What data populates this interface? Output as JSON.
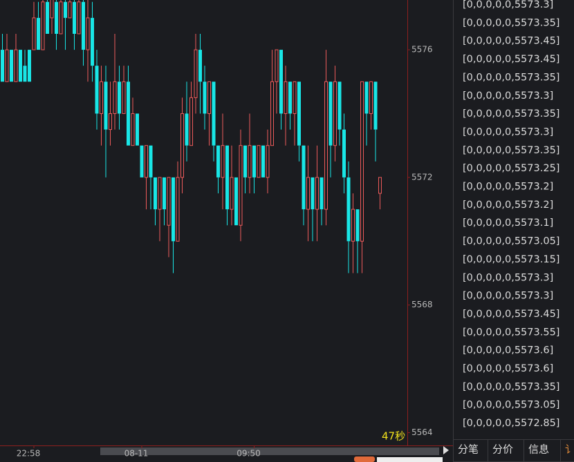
{
  "chart_data": {
    "type": "candlestick",
    "up_color": "#ef5b5b",
    "down_color": "#19e6e6",
    "categories": [
      null,
      null,
      null,
      null,
      null,
      null,
      null,
      "22:58",
      null,
      null,
      null,
      null,
      null,
      null,
      null,
      null,
      null,
      null,
      null,
      null,
      null,
      null,
      null,
      null,
      null,
      null,
      null,
      null,
      null,
      null,
      null,
      "08-11",
      null,
      null,
      null,
      null,
      null,
      null,
      null,
      null,
      null,
      null,
      null,
      null,
      null,
      null,
      null,
      null,
      null,
      null,
      null,
      null,
      null,
      null,
      null,
      null,
      "09:50",
      null,
      null,
      null,
      null,
      null,
      null,
      null,
      null,
      null,
      null,
      null,
      null,
      null,
      null,
      null,
      null,
      null,
      null,
      null,
      null,
      null,
      null,
      null,
      null,
      null,
      null,
      null,
      null
    ],
    "open": [
      5576,
      5575,
      5576,
      5575,
      5576,
      5575.5,
      5576,
      5576,
      5577,
      5576,
      5577.5,
      5577,
      5577.5,
      5576.5,
      5577.5,
      5577,
      5577.5,
      5576.5,
      5577.5,
      5576,
      5577,
      5575.5,
      5574,
      5575,
      5573.5,
      5574,
      5575,
      5574,
      5575,
      5573,
      5574,
      5573,
      5572,
      5573,
      5572,
      5571,
      5572,
      5570.5,
      5572,
      5570,
      5572,
      5574,
      5573,
      5574.5,
      5576,
      5575,
      5574,
      5575,
      5573,
      5572,
      5573,
      5571,
      5572,
      5570.5,
      5573,
      5572,
      5573,
      5572,
      5573,
      5572,
      5573,
      5575,
      5576,
      5574,
      5575,
      5574,
      5575,
      5573,
      5571,
      5572,
      5571,
      5572,
      5571,
      5575,
      5573,
      5575,
      5573.5,
      5572,
      5570,
      5571,
      5570,
      5575,
      5574,
      5575,
      5571.5
    ],
    "high": [
      5576.5,
      5576.5,
      5576,
      5576.5,
      5576,
      5576,
      5576,
      5577.5,
      5577.5,
      5577.6,
      5577.6,
      5578,
      5578,
      5578,
      5578,
      5578,
      5578,
      5578,
      5578,
      5578,
      5577.5,
      5576,
      5575.5,
      5575.5,
      5575,
      5576.5,
      5575.5,
      5575.5,
      5575.5,
      5574.5,
      5574,
      5573,
      5573,
      5573,
      5572,
      5572,
      5572,
      5572,
      5572,
      5572.5,
      5574.5,
      5575,
      5575,
      5576.5,
      5576.5,
      5575.5,
      5575,
      5575,
      5573,
      5574,
      5573,
      5573,
      5572,
      5573.5,
      5573,
      5574,
      5573,
      5573,
      5573,
      5573.5,
      5576,
      5576,
      5576,
      5575.5,
      5575,
      5575,
      5575,
      5573,
      5573,
      5572,
      5573,
      5572,
      5576,
      5575,
      5575.5,
      5575,
      5574,
      5572.5,
      5571.5,
      5571,
      5575,
      5575,
      5575,
      5575,
      5572
    ],
    "low": [
      5575,
      5575,
      5575,
      5575,
      5575,
      5575,
      5575,
      5576,
      5576,
      5576,
      5576.5,
      5576.5,
      5576,
      5576.5,
      5576,
      5577,
      5576,
      5576.5,
      5575.5,
      5575,
      5575,
      5573.5,
      5573,
      5572,
      5573,
      5573.5,
      5573.5,
      5574,
      5573,
      5573,
      5573,
      5572,
      5571,
      5571,
      5570.5,
      5570,
      5570.5,
      5569.5,
      5569,
      5570,
      5571.5,
      5572.5,
      5573,
      5574,
      5574,
      5573.5,
      5573,
      5572.5,
      5571.5,
      5571,
      5570.5,
      5570.5,
      5570.5,
      5570,
      5571.5,
      5571.5,
      5571.5,
      5572,
      5572,
      5571.5,
      5573,
      5574,
      5573.5,
      5573,
      5573.5,
      5573,
      5572.5,
      5570.5,
      5570,
      5570,
      5570,
      5570.5,
      5570.5,
      5572,
      5572.5,
      5573,
      5571.5,
      5569,
      5569,
      5569,
      5569,
      5573,
      5573.5,
      5572.5,
      5571
    ],
    "close": [
      5575,
      5576,
      5575,
      5576,
      5575,
      5575,
      5575,
      5577,
      5576,
      5577.5,
      5576.5,
      5578,
      5576.5,
      5577.5,
      5577,
      5577.5,
      5576.5,
      5577.5,
      5576,
      5577,
      5575.5,
      5574,
      5575,
      5573.5,
      5574,
      5575,
      5574,
      5575,
      5573,
      5574,
      5573,
      5572,
      5573,
      5572,
      5571,
      5572,
      5571,
      5572,
      5570,
      5572,
      5574,
      5573,
      5574.5,
      5576,
      5575,
      5574,
      5575,
      5573,
      5572,
      5573,
      5571,
      5572,
      5570.5,
      5573,
      5572,
      5573,
      5572,
      5573,
      5572,
      5573,
      5575,
      5576,
      5574,
      5575,
      5574,
      5575,
      5573,
      5571,
      5572,
      5571,
      5572,
      5571,
      5575,
      5573,
      5575,
      5573.5,
      5572,
      5570,
      5571,
      5570,
      5575,
      5574,
      5575,
      5573.5,
      5572
    ],
    "ylim": [
      5563.6,
      5577.56
    ],
    "yticks": [
      5564,
      5568,
      5572,
      5576
    ],
    "countdown": "47秒"
  },
  "tick_list": [
    "[0,0,0,0,0,5573.3]",
    "[0,0,0,0,0,5573.35]",
    "[0,0,0,0,0,5573.45]",
    "[0,0,0,0,0,5573.45]",
    "[0,0,0,0,0,5573.35]",
    "[0,0,0,0,0,5573.3]",
    "[0,0,0,0,0,5573.35]",
    "[0,0,0,0,0,5573.3]",
    "[0,0,0,0,0,5573.35]",
    "[0,0,0,0,0,5573.25]",
    "[0,0,0,0,0,5573.2]",
    "[0,0,0,0,0,5573.2]",
    "[0,0,0,0,0,5573.1]",
    "[0,0,0,0,0,5573.05]",
    "[0,0,0,0,0,5573.15]",
    "[0,0,0,0,0,5573.3]",
    "[0,0,0,0,0,5573.3]",
    "[0,0,0,0,0,5573.45]",
    "[0,0,0,0,0,5573.55]",
    "[0,0,0,0,0,5573.6]",
    "[0,0,0,0,0,5573.6]",
    "[0,0,0,0,0,5573.35]",
    "[0,0,0,0,0,5573.05]",
    "[0,0,0,0,0,5572.85]"
  ],
  "tabs": [
    "分笔",
    "分价",
    "信息",
    "讠"
  ]
}
